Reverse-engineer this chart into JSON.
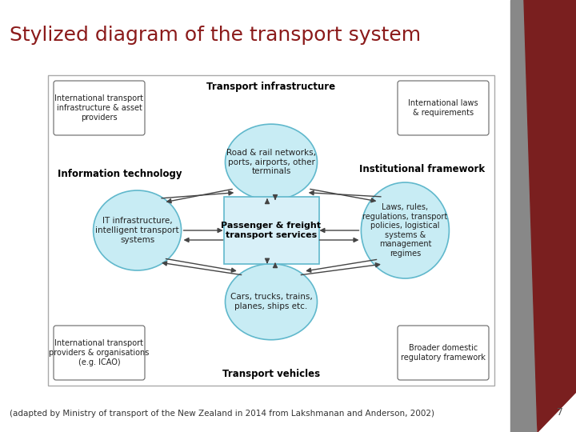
{
  "title": "Stylized diagram of the transport system",
  "title_color": "#8B1A1A",
  "title_fontsize": 18,
  "caption": "(adapted by Ministry of transport of the New Zealand in 2014 from Lakshmanan and Anderson, 2002)",
  "caption_fontsize": 7.5,
  "bg_color": "#ffffff",
  "ellipse_fill": "#c8ecf4",
  "ellipse_edge": "#60b8cc",
  "center_box_fill": "#d8f0f8",
  "center_box_edge": "#60b8cc",
  "arrow_color": "#444444",
  "label_infra": "Transport infrastructure",
  "label_it": "Information technology",
  "label_inst": "Institutional framework",
  "label_vehicles": "Transport vehicles",
  "ellipse_top_text": "Road & rail networks,\nports, airports, other\nterminals",
  "ellipse_left_text": "IT infrastructure,\nintelligent transport\nsystems",
  "ellipse_right_text": "Laws, rules,\nregulations, transport\npolicies, logistical\nsystems &\nmanagement\nregimes",
  "ellipse_bottom_text": "Cars, trucks, trains,\nplanes, ships etc.",
  "center_text": "Passenger & freight\ntransport services",
  "rect_tl_text": "International transport\ninfrastructure & asset\nproviders",
  "rect_tr_text": "International laws\n& requirements",
  "rect_bl_text": "International transport\nproviders & organisations\n(e.g. ICAO)",
  "rect_br_text": "Broader domestic\nregulatory framework",
  "page_number": "7"
}
